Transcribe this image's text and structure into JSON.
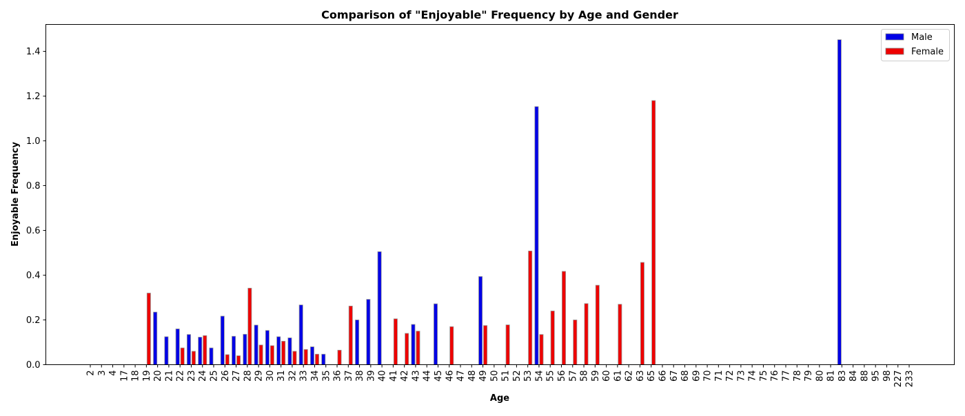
{
  "chart_data": {
    "type": "bar",
    "title": "Comparison of \"Enjoyable\" Frequency by Age and Gender",
    "xlabel": "Age",
    "ylabel": "Enjoyable Frequency",
    "ylim": [
      0,
      1.52
    ],
    "yticks": [
      "0.0",
      "0.2",
      "0.4",
      "0.6",
      "0.8",
      "1.0",
      "1.2",
      "1.4"
    ],
    "grid": false,
    "legend_position": "top-right",
    "categories": [
      "2",
      "3",
      "4",
      "17",
      "18",
      "19",
      "20",
      "21",
      "22",
      "23",
      "24",
      "25",
      "26",
      "27",
      "28",
      "29",
      "30",
      "31",
      "32",
      "33",
      "34",
      "35",
      "36",
      "37",
      "38",
      "39",
      "40",
      "41",
      "42",
      "43",
      "44",
      "45",
      "46",
      "47",
      "48",
      "49",
      "50",
      "51",
      "52",
      "53",
      "54",
      "55",
      "56",
      "57",
      "58",
      "59",
      "60",
      "61",
      "62",
      "63",
      "65",
      "66",
      "67",
      "68",
      "69",
      "70",
      "71",
      "72",
      "73",
      "74",
      "75",
      "76",
      "77",
      "78",
      "79",
      "80",
      "81",
      "83",
      "84",
      "88",
      "95",
      "98",
      "227",
      "233"
    ],
    "series": [
      {
        "name": "Male",
        "color": "#0000e6",
        "values": [
          0,
          0,
          0,
          0,
          0,
          0,
          0.235,
          0.125,
          0.16,
          0.135,
          0.123,
          0.075,
          0.217,
          0.127,
          0.136,
          0.177,
          0.153,
          0.125,
          0.12,
          0.267,
          0.08,
          0.047,
          0,
          0,
          0.2,
          0.292,
          0.505,
          0,
          0,
          0.18,
          0,
          0.272,
          0,
          0,
          0,
          0.394,
          0,
          0,
          0,
          0,
          1.153,
          0,
          0,
          0,
          0,
          0,
          0,
          0,
          0,
          0,
          0,
          0,
          0,
          0,
          0,
          0,
          0,
          0,
          0,
          0,
          0,
          0,
          0,
          0,
          0,
          0,
          0,
          1.452,
          0,
          0,
          0,
          0,
          0,
          0
        ]
      },
      {
        "name": "Female",
        "color": "#ee0000",
        "values": [
          0,
          0,
          0,
          0,
          0,
          0.32,
          0,
          0,
          0.075,
          0.06,
          0.13,
          0,
          0.045,
          0.04,
          0.342,
          0.088,
          0.085,
          0.105,
          0.06,
          0.068,
          0.047,
          0,
          0.065,
          0.262,
          0,
          0,
          0,
          0.205,
          0.14,
          0.15,
          0,
          0,
          0.17,
          0,
          0,
          0.175,
          0,
          0.178,
          0,
          0.508,
          0.135,
          0.24,
          0.417,
          0.2,
          0.273,
          0.355,
          0,
          0.27,
          0,
          0.457,
          1.18,
          0,
          0,
          0,
          0,
          0,
          0,
          0,
          0,
          0,
          0,
          0,
          0,
          0,
          0,
          0,
          0,
          0,
          0,
          0,
          0,
          0,
          0,
          0
        ]
      }
    ]
  }
}
